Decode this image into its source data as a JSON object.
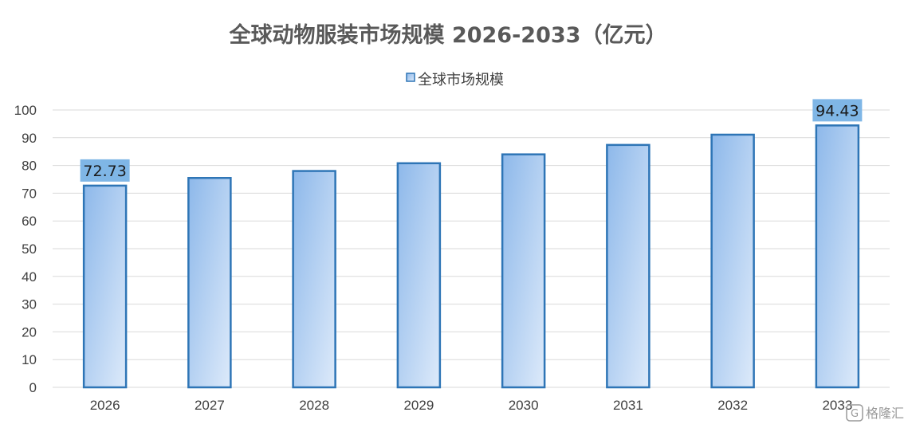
{
  "chart_data": {
    "type": "bar",
    "title": "全球动物服装市场规模 2026-2033（亿元）",
    "legend": {
      "position": "top",
      "entries": [
        "全球市场规模"
      ]
    },
    "categories": [
      "2026",
      "2027",
      "2028",
      "2029",
      "2030",
      "2031",
      "2032",
      "2033"
    ],
    "series": [
      {
        "name": "全球市场规模",
        "values": [
          72.73,
          75.5,
          78.0,
          80.8,
          84.0,
          87.4,
          91.1,
          94.43
        ]
      }
    ],
    "data_labels": [
      {
        "category": "2026",
        "text": "72.73"
      },
      {
        "category": "2033",
        "text": "94.43"
      }
    ],
    "yticks": [
      "0",
      "10",
      "20",
      "30",
      "40",
      "50",
      "60",
      "70",
      "80",
      "90",
      "100"
    ],
    "ylim": [
      0,
      100
    ],
    "grid": true,
    "colors": {
      "bar_fill_start": "#8DB8EA",
      "bar_fill_end": "#DDEAFA",
      "bar_stroke": "#2E75B6",
      "label_bg": "#7FB6E6",
      "grid": "#D9D9D9"
    }
  },
  "watermark": {
    "text": "格隆汇"
  }
}
